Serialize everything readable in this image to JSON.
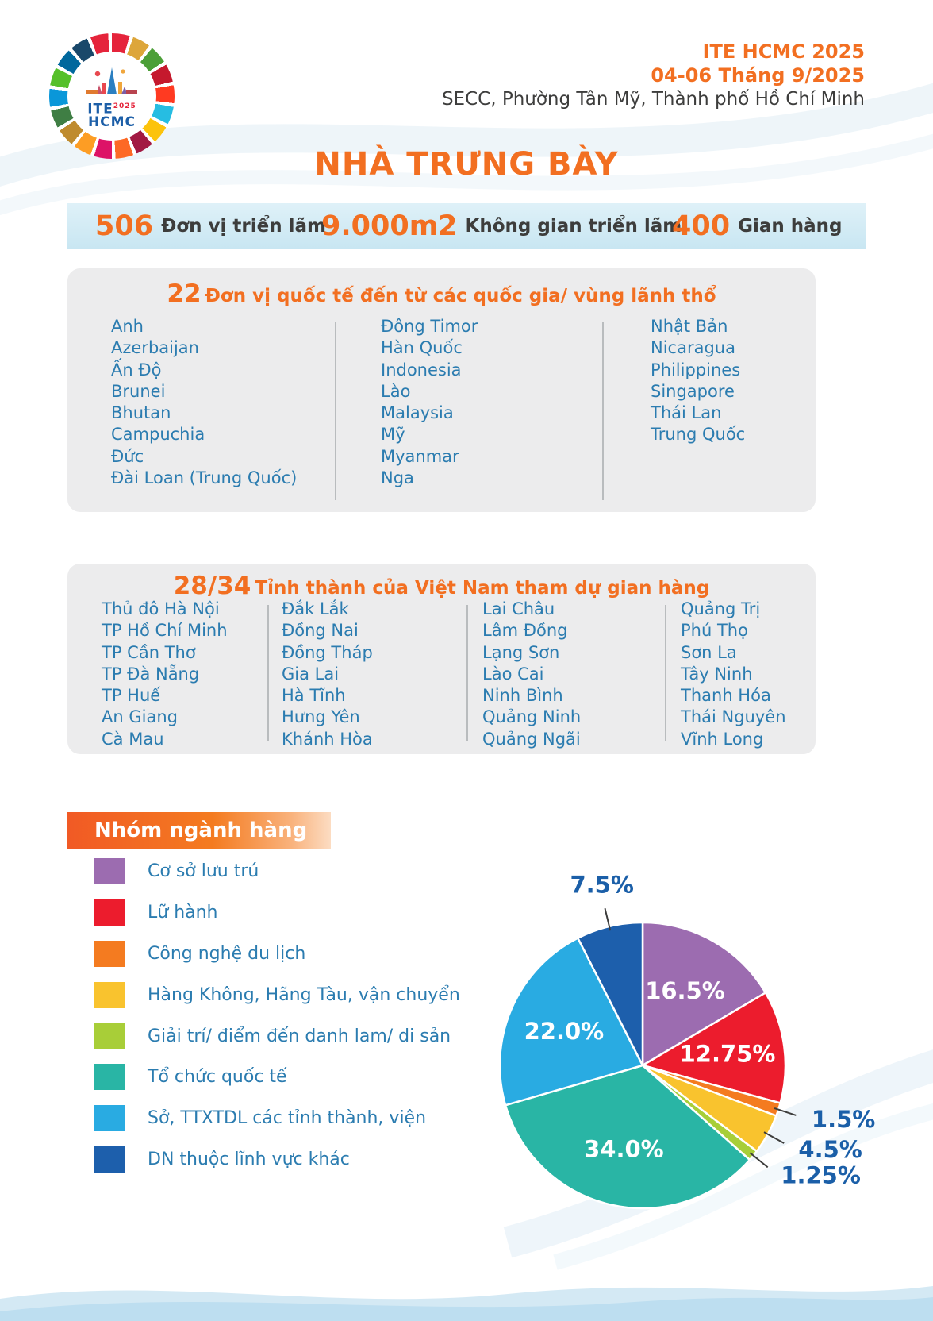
{
  "header": {
    "event": "ITE HCMC 2025",
    "dates": "04-06 Tháng 9/2025",
    "venue": "SECC, Phường Tân Mỹ, Thành phố Hồ Chí Minh",
    "logo_line1": "ITE",
    "logo_year": "2025",
    "logo_line2": "HCMC"
  },
  "title": "NHÀ TRƯNG BÀY",
  "stats": [
    {
      "value": "506",
      "label": "Đơn vị triển lãm"
    },
    {
      "value": "9.000m2",
      "label": "Không gian triển lãm"
    },
    {
      "value": "400",
      "label": "Gian hàng"
    }
  ],
  "international": {
    "heading_number": "22",
    "heading_text": "Đơn vị quốc tế đến từ các quốc gia/ vùng lãnh thổ",
    "columns": [
      [
        "Anh",
        "Azerbaijan",
        "Ấn Độ",
        "Brunei",
        "Bhutan",
        "Campuchia",
        "Đức",
        "Đài Loan (Trung Quốc)"
      ],
      [
        "Đông Timor",
        "Hàn Quốc",
        "Indonesia",
        "Lào",
        "Malaysia",
        "Mỹ",
        "Myanmar",
        "Nga"
      ],
      [
        "Nhật Bản",
        "Nicaragua",
        "Philippines",
        "Singapore",
        "Thái Lan",
        "Trung Quốc"
      ]
    ]
  },
  "provinces": {
    "heading_number": "28/34",
    "heading_text": "Tỉnh thành của Việt Nam tham dự gian hàng",
    "columns": [
      [
        "Thủ đô Hà Nội",
        "TP Hồ Chí Minh",
        "TP Cần Thơ",
        "TP Đà Nẵng",
        "TP Huế",
        "An Giang",
        "Cà Mau"
      ],
      [
        "Đắk Lắk",
        "Đồng Nai",
        "Đồng Tháp",
        "Gia Lai",
        "Hà Tĩnh",
        "Hưng Yên",
        "Khánh Hòa"
      ],
      [
        "Lai Châu",
        "Lâm Đồng",
        "Lạng Sơn",
        "Lào Cai",
        "Ninh Bình",
        "Quảng Ninh",
        "Quảng Ngãi"
      ],
      [
        "Quảng Trị",
        "Phú Thọ",
        "Sơn La",
        "Tây Ninh",
        "Thanh Hóa",
        "Thái Nguyên",
        "Vĩnh Long"
      ]
    ]
  },
  "industry": {
    "banner": "Nhóm ngành hàng"
  },
  "colors": {
    "accent_orange": "#f26f21",
    "list_blue": "#2b7cb0",
    "dark_text": "#3d3d3c",
    "stats_bar_bg": "#c8e6f2",
    "panel_bg": "#ececed",
    "outside_label_blue": "#1b5fa8"
  },
  "chart_data": {
    "type": "pie",
    "title": "Nhóm ngành hàng",
    "direction": "clockwise",
    "start_angle_deg": 0,
    "legend_position": "left",
    "slices": [
      {
        "label": "Cơ sở lưu trú",
        "value": 16.5,
        "display": "16.5%",
        "color": "#9c6cb0",
        "label_pos": "inside"
      },
      {
        "label": "Lữ hành",
        "value": 12.75,
        "display": "12.75%",
        "color": "#ec1c2d",
        "label_pos": "inside"
      },
      {
        "label": "Công nghệ du lịch",
        "value": 1.5,
        "display": "1.5%",
        "color": "#f47b20",
        "label_pos": "outside"
      },
      {
        "label": "Hàng Không, Hãng Tàu, vận chuyển",
        "value": 4.5,
        "display": "4.5%",
        "color": "#f9c32e",
        "label_pos": "outside"
      },
      {
        "label": "Giải trí/ điểm đến danh lam/ di sản",
        "value": 1.25,
        "display": "1.25%",
        "color": "#a8ce38",
        "label_pos": "outside"
      },
      {
        "label": "Tổ chức quốc tế",
        "value": 34.0,
        "display": "34.0%",
        "color": "#29b5a5",
        "label_pos": "inside"
      },
      {
        "label": "Sở, TTXTDL các tỉnh thành, viện",
        "value": 22.0,
        "display": "22.0%",
        "color": "#29abe2",
        "label_pos": "inside"
      },
      {
        "label": "DN thuộc lĩnh vực khác",
        "value": 7.5,
        "display": "7.5%",
        "color": "#1d5fac",
        "label_pos": "outside"
      }
    ]
  }
}
